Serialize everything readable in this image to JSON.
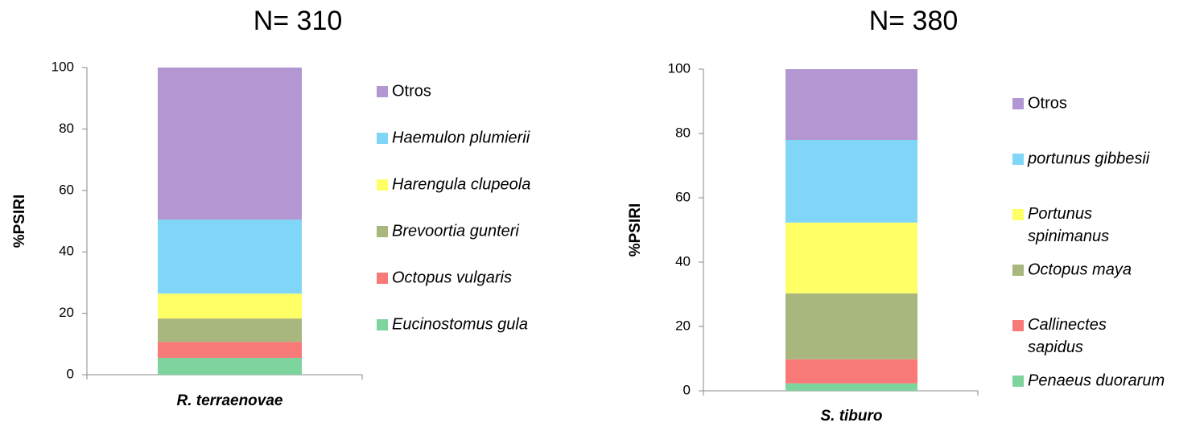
{
  "chart_data": [
    {
      "type": "bar",
      "stacked": true,
      "title": "N= 310",
      "ylabel": "%PSIRI",
      "categories": [
        "R. terraenovae"
      ],
      "ylim": [
        0,
        100
      ],
      "yticks": [
        0,
        20,
        40,
        60,
        80,
        100
      ],
      "series": [
        {
          "name": "Eucinostomus gula",
          "color": "#7dd49c",
          "values": [
            5.5
          ]
        },
        {
          "name": "Octopus vulgaris",
          "color": "#f87a78",
          "values": [
            5.2
          ]
        },
        {
          "name": "Brevoortia gunteri",
          "color": "#a8b77e",
          "values": [
            7.6
          ]
        },
        {
          "name": "Harengula clupeola",
          "color": "#ffff66",
          "values": [
            8.1
          ]
        },
        {
          "name": "Haemulon plumierii",
          "color": "#7fd6f7",
          "values": [
            24.1
          ]
        },
        {
          "name": "Otros",
          "color": "#b397d2",
          "values": [
            49.5
          ]
        }
      ]
    },
    {
      "type": "bar",
      "stacked": true,
      "title": "N= 380",
      "ylabel": "%PSIRI",
      "categories": [
        "S. tiburo"
      ],
      "ylim": [
        0,
        100
      ],
      "yticks": [
        0,
        20,
        40,
        60,
        80,
        100
      ],
      "series": [
        {
          "name": "Penaeus duorarum",
          "color": "#7dd49c",
          "values": [
            2.3
          ]
        },
        {
          "name": "Callinectes sapidus",
          "color": "#f87a78",
          "values": [
            7.5
          ]
        },
        {
          "name": "Octopus maya",
          "color": "#a8b77e",
          "values": [
            20.5
          ]
        },
        {
          "name": "Portunus spinimanus",
          "color": "#ffff66",
          "values": [
            22
          ]
        },
        {
          "name": "portunus gibbesii",
          "color": "#7fd6f7",
          "values": [
            25.7
          ]
        },
        {
          "name": "Otros",
          "color": "#b397d2",
          "values": [
            22
          ]
        }
      ]
    }
  ]
}
